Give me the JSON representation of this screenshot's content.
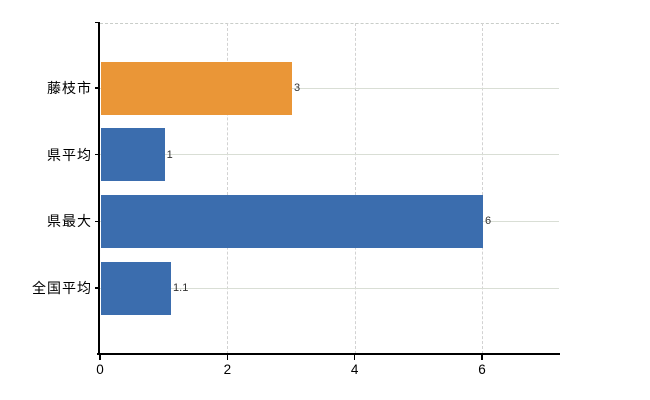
{
  "chart_data": {
    "type": "bar",
    "orientation": "horizontal",
    "title": "",
    "xlabel": "",
    "ylabel": "",
    "categories": [
      "藤枝市",
      "県平均",
      "県最大",
      "全国平均"
    ],
    "values": [
      3,
      1,
      6,
      1.1
    ],
    "value_labels": [
      "3",
      "1",
      "6",
      "1.1"
    ],
    "series": [
      {
        "name": "値",
        "values": [
          3,
          1,
          6,
          1.1
        ]
      }
    ],
    "bar_colors": [
      "#EA9637",
      "#3B6DAE",
      "#3B6DAE",
      "#3B6DAE"
    ],
    "highlight_category": "藤枝市",
    "xlim": [
      0,
      7.2
    ],
    "x_ticks": [
      0,
      2,
      4,
      6
    ],
    "x_tick_labels": [
      "0",
      "2",
      "4",
      "6"
    ],
    "grid": true,
    "legend": null
  },
  "colors": {
    "highlight_bar": "#EA9637",
    "default_bar": "#3B6DAE",
    "axis": "#000000",
    "gridline_horizontal": "#d9ded5",
    "gridline_vertical": "#d2d2d2",
    "background": "#ffffff"
  }
}
